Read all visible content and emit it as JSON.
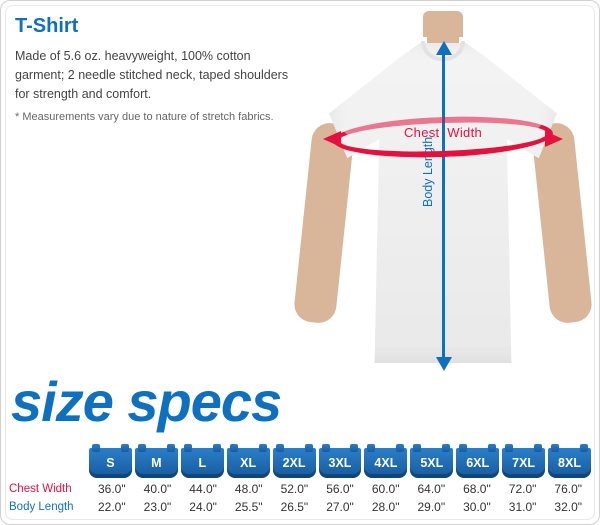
{
  "title": "T-Shirt",
  "description": "Made of 5.6 oz. heavyweight, 100% cotton garment; 2 needle stitched neck, taped shoulders for strength and comfort.",
  "footnote": "* Measurements vary due to nature of stretch fabrics.",
  "headline": "size specs",
  "diagram": {
    "chest_label_a": "Chest",
    "chest_label_b": "Width",
    "length_label": "Body Length",
    "chest_color": "#e4113e",
    "length_color": "#1070c0"
  },
  "colors": {
    "brand_blue": "#1070c0",
    "accent_red": "#e4113e",
    "chip_grad_top": "#2a7fc9",
    "chip_grad_bot": "#185a9d",
    "text": "#333333",
    "frame_border": "#d0d0d0"
  },
  "table": {
    "row_labels": [
      "Chest Width",
      "Body Length"
    ],
    "row_label_colors": [
      "#e4113e",
      "#1070c0"
    ],
    "columns": [
      "S",
      "M",
      "L",
      "XL",
      "2XL",
      "3XL",
      "4XL",
      "5XL",
      "6XL",
      "7XL",
      "8XL"
    ],
    "rows": [
      [
        "36.0\"",
        "40.0\"",
        "44.0\"",
        "48.0\"",
        "52.0\"",
        "56.0\"",
        "60.0\"",
        "64.0\"",
        "68.0\"",
        "72.0\"",
        "76.0\""
      ],
      [
        "22.0\"",
        "23.0\"",
        "24.0\"",
        "25.5\"",
        "26.5\"",
        "27.0\"",
        "28.0\"",
        "29.0\"",
        "30.0\"",
        "31.0\"",
        "32.0\""
      ]
    ]
  }
}
